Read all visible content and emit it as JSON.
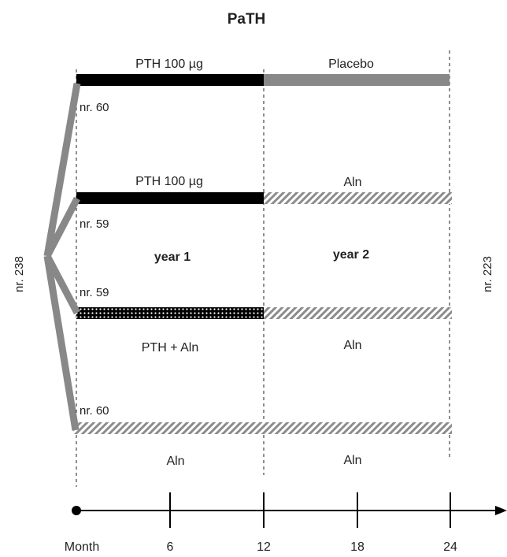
{
  "title": "PaTH",
  "colors": {
    "pth_bar": "#000000",
    "placebo_bar": "#888888",
    "branch": "#888888",
    "axis": "#000000",
    "hatch_light": "#ffffff",
    "hatch_dark": "#8c8c8c"
  },
  "enrollment": {
    "label": "nr. 238"
  },
  "completion": {
    "label": "nr. 223"
  },
  "periods": {
    "year1": "year 1",
    "year2": "year 2"
  },
  "arms": [
    {
      "count": "nr. 60",
      "year1": {
        "label": "PTH 100 µg",
        "pattern": "solid-black"
      },
      "year2": {
        "label": "Placebo",
        "pattern": "solid-gray"
      }
    },
    {
      "count": "nr. 59",
      "year1": {
        "label": "PTH 100 µg",
        "pattern": "solid-black"
      },
      "year2": {
        "label": "Aln",
        "pattern": "hatched"
      }
    },
    {
      "count": "nr. 59",
      "year1": {
        "label": "PTH + Aln",
        "pattern": "dotted"
      },
      "year2": {
        "label": "Aln",
        "pattern": "hatched"
      }
    },
    {
      "count": "nr. 60",
      "year1": {
        "label": "Aln",
        "pattern": "hatched"
      },
      "year2": {
        "label": "Aln",
        "pattern": "hatched"
      }
    }
  ],
  "axis": {
    "label": "Month",
    "ticks": [
      "6",
      "12",
      "18",
      "24"
    ]
  }
}
